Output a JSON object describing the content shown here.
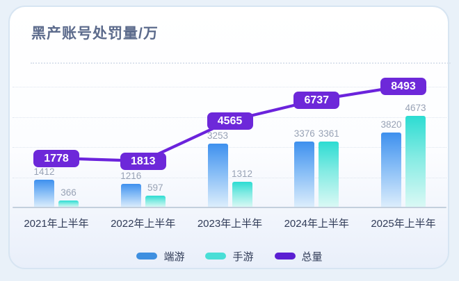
{
  "card": {
    "title": "黑产账号处罚量/万"
  },
  "chart_data": {
    "type": "bar",
    "title": "黑产账号处罚量/万",
    "unit": "万",
    "categories": [
      "2021年上半年",
      "2022年上半年",
      "2023年上半年",
      "2024年上半年",
      "2025年上半年"
    ],
    "series": [
      {
        "name": "端游",
        "key": "pc-games",
        "type": "bar",
        "values": [
          1412,
          1216,
          3253,
          3376,
          3820
        ]
      },
      {
        "name": "手游",
        "key": "mobile-games",
        "type": "bar",
        "values": [
          366,
          597,
          1312,
          3361,
          4673
        ]
      },
      {
        "name": "总量",
        "key": "total",
        "type": "line",
        "values": [
          1778,
          1813,
          4565,
          6737,
          8493
        ]
      }
    ],
    "data_labels": "all values shown",
    "grid": "horizontal-dotted",
    "legend_position": "bottom",
    "ylim": [
      0,
      10500
    ]
  },
  "legend": {
    "items": [
      {
        "label": "端游",
        "color": "#3e8fe0"
      },
      {
        "label": "手游",
        "color": "#49ded6"
      },
      {
        "label": "总量",
        "color": "#5a1ed2"
      }
    ]
  },
  "colors": {
    "background": "#e9f1f9",
    "card_border": "#d7e5f2",
    "card_bg_bottom": "#e9effa",
    "title": "#5c6b8c",
    "separator": "#dce3ed",
    "gridline": "#c6d2e2",
    "axis_line": "#c3cfdd",
    "bar_blue_top": "#3e90ee",
    "bar_blue_mid": "#85bcf6",
    "bar_blue_bottom": "#ddeefc",
    "bar_teal_top": "#2cdcd2",
    "bar_teal_mid": "#84ebe3",
    "bar_teal_bottom": "#dbf9f5",
    "bar_value_text": "#98a2b5",
    "label_box_bg": "#6d28d9",
    "label_box_text": "#ffffff",
    "line_purple": "#6b23dc",
    "axis_text": "#303b57"
  }
}
